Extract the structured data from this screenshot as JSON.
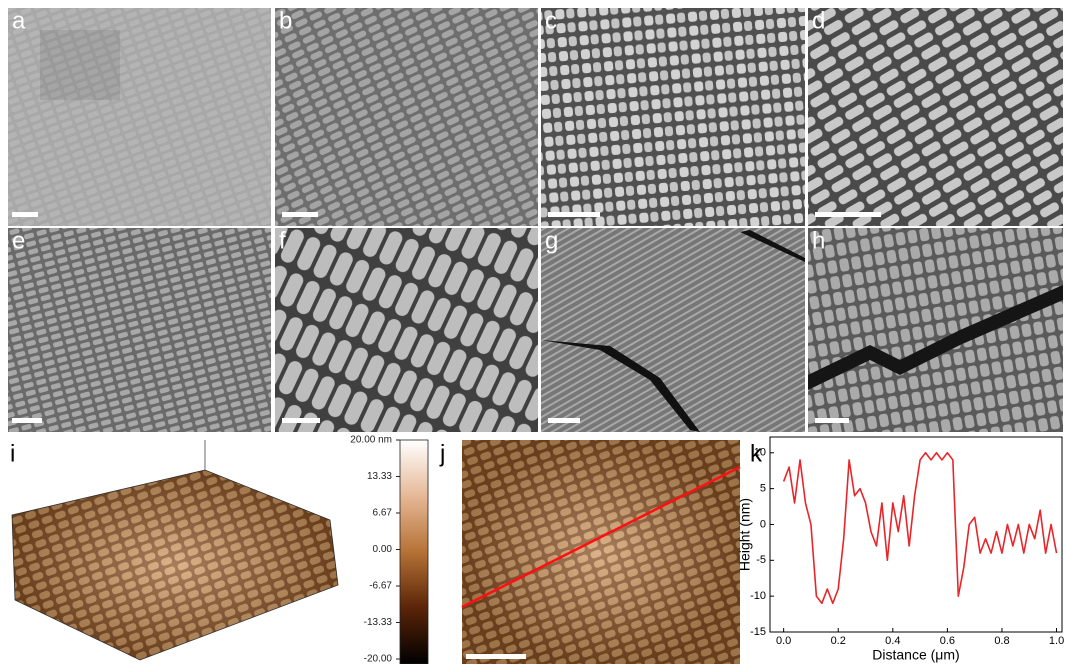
{
  "panel_labels": [
    "a",
    "b",
    "c",
    "d",
    "e",
    "f",
    "g",
    "h",
    "i",
    "j",
    "k"
  ],
  "colorbar": {
    "ticks": [
      {
        "value": 20,
        "label": "20.00 nm"
      },
      13.33,
      6.67,
      {
        "value": 0,
        "label": "0.00"
      },
      -6.67,
      -13.33,
      {
        "value": -20,
        "label": "-20.00"
      }
    ]
  },
  "chart_data": {
    "type": "line",
    "xlabel": "Distance (μm)",
    "ylabel": "Height (nm)",
    "x": [
      0,
      0.02,
      0.04,
      0.06,
      0.08,
      0.1,
      0.12,
      0.14,
      0.16,
      0.18,
      0.2,
      0.22,
      0.24,
      0.26,
      0.28,
      0.3,
      0.32,
      0.34,
      0.36,
      0.38,
      0.4,
      0.42,
      0.44,
      0.46,
      0.48,
      0.5,
      0.52,
      0.54,
      0.56,
      0.58,
      0.6,
      0.62,
      0.64,
      0.66,
      0.68,
      0.7,
      0.72,
      0.74,
      0.76,
      0.78,
      0.8,
      0.82,
      0.84,
      0.86,
      0.88,
      0.9,
      0.92,
      0.94,
      0.96,
      0.98,
      1.0
    ],
    "series": [
      {
        "color": "#e8262a",
        "values": [
          6,
          8,
          3,
          9,
          3,
          0,
          -10,
          -11,
          -9,
          -11,
          -9,
          -2,
          9,
          4,
          5,
          3,
          -1,
          -3,
          3,
          -5,
          3,
          -1,
          4,
          -3,
          4,
          9,
          10,
          9,
          10,
          9,
          10,
          9,
          -10,
          -6,
          0,
          1,
          -4,
          -2,
          -4,
          -1,
          -4,
          0,
          -3,
          0,
          -4,
          0,
          -2,
          2,
          -4,
          0,
          -4
        ]
      }
    ],
    "xlim": [
      -0.05,
      1.02
    ],
    "ylim": [
      -15,
      12.2
    ],
    "xticks": [
      {
        "value": 0,
        "label": "0.0"
      },
      0.2,
      0.4,
      0.6,
      0.8,
      {
        "value": 1,
        "label": "1.0"
      }
    ],
    "yticks": [
      10,
      5,
      0,
      -5,
      -10,
      -15
    ]
  }
}
